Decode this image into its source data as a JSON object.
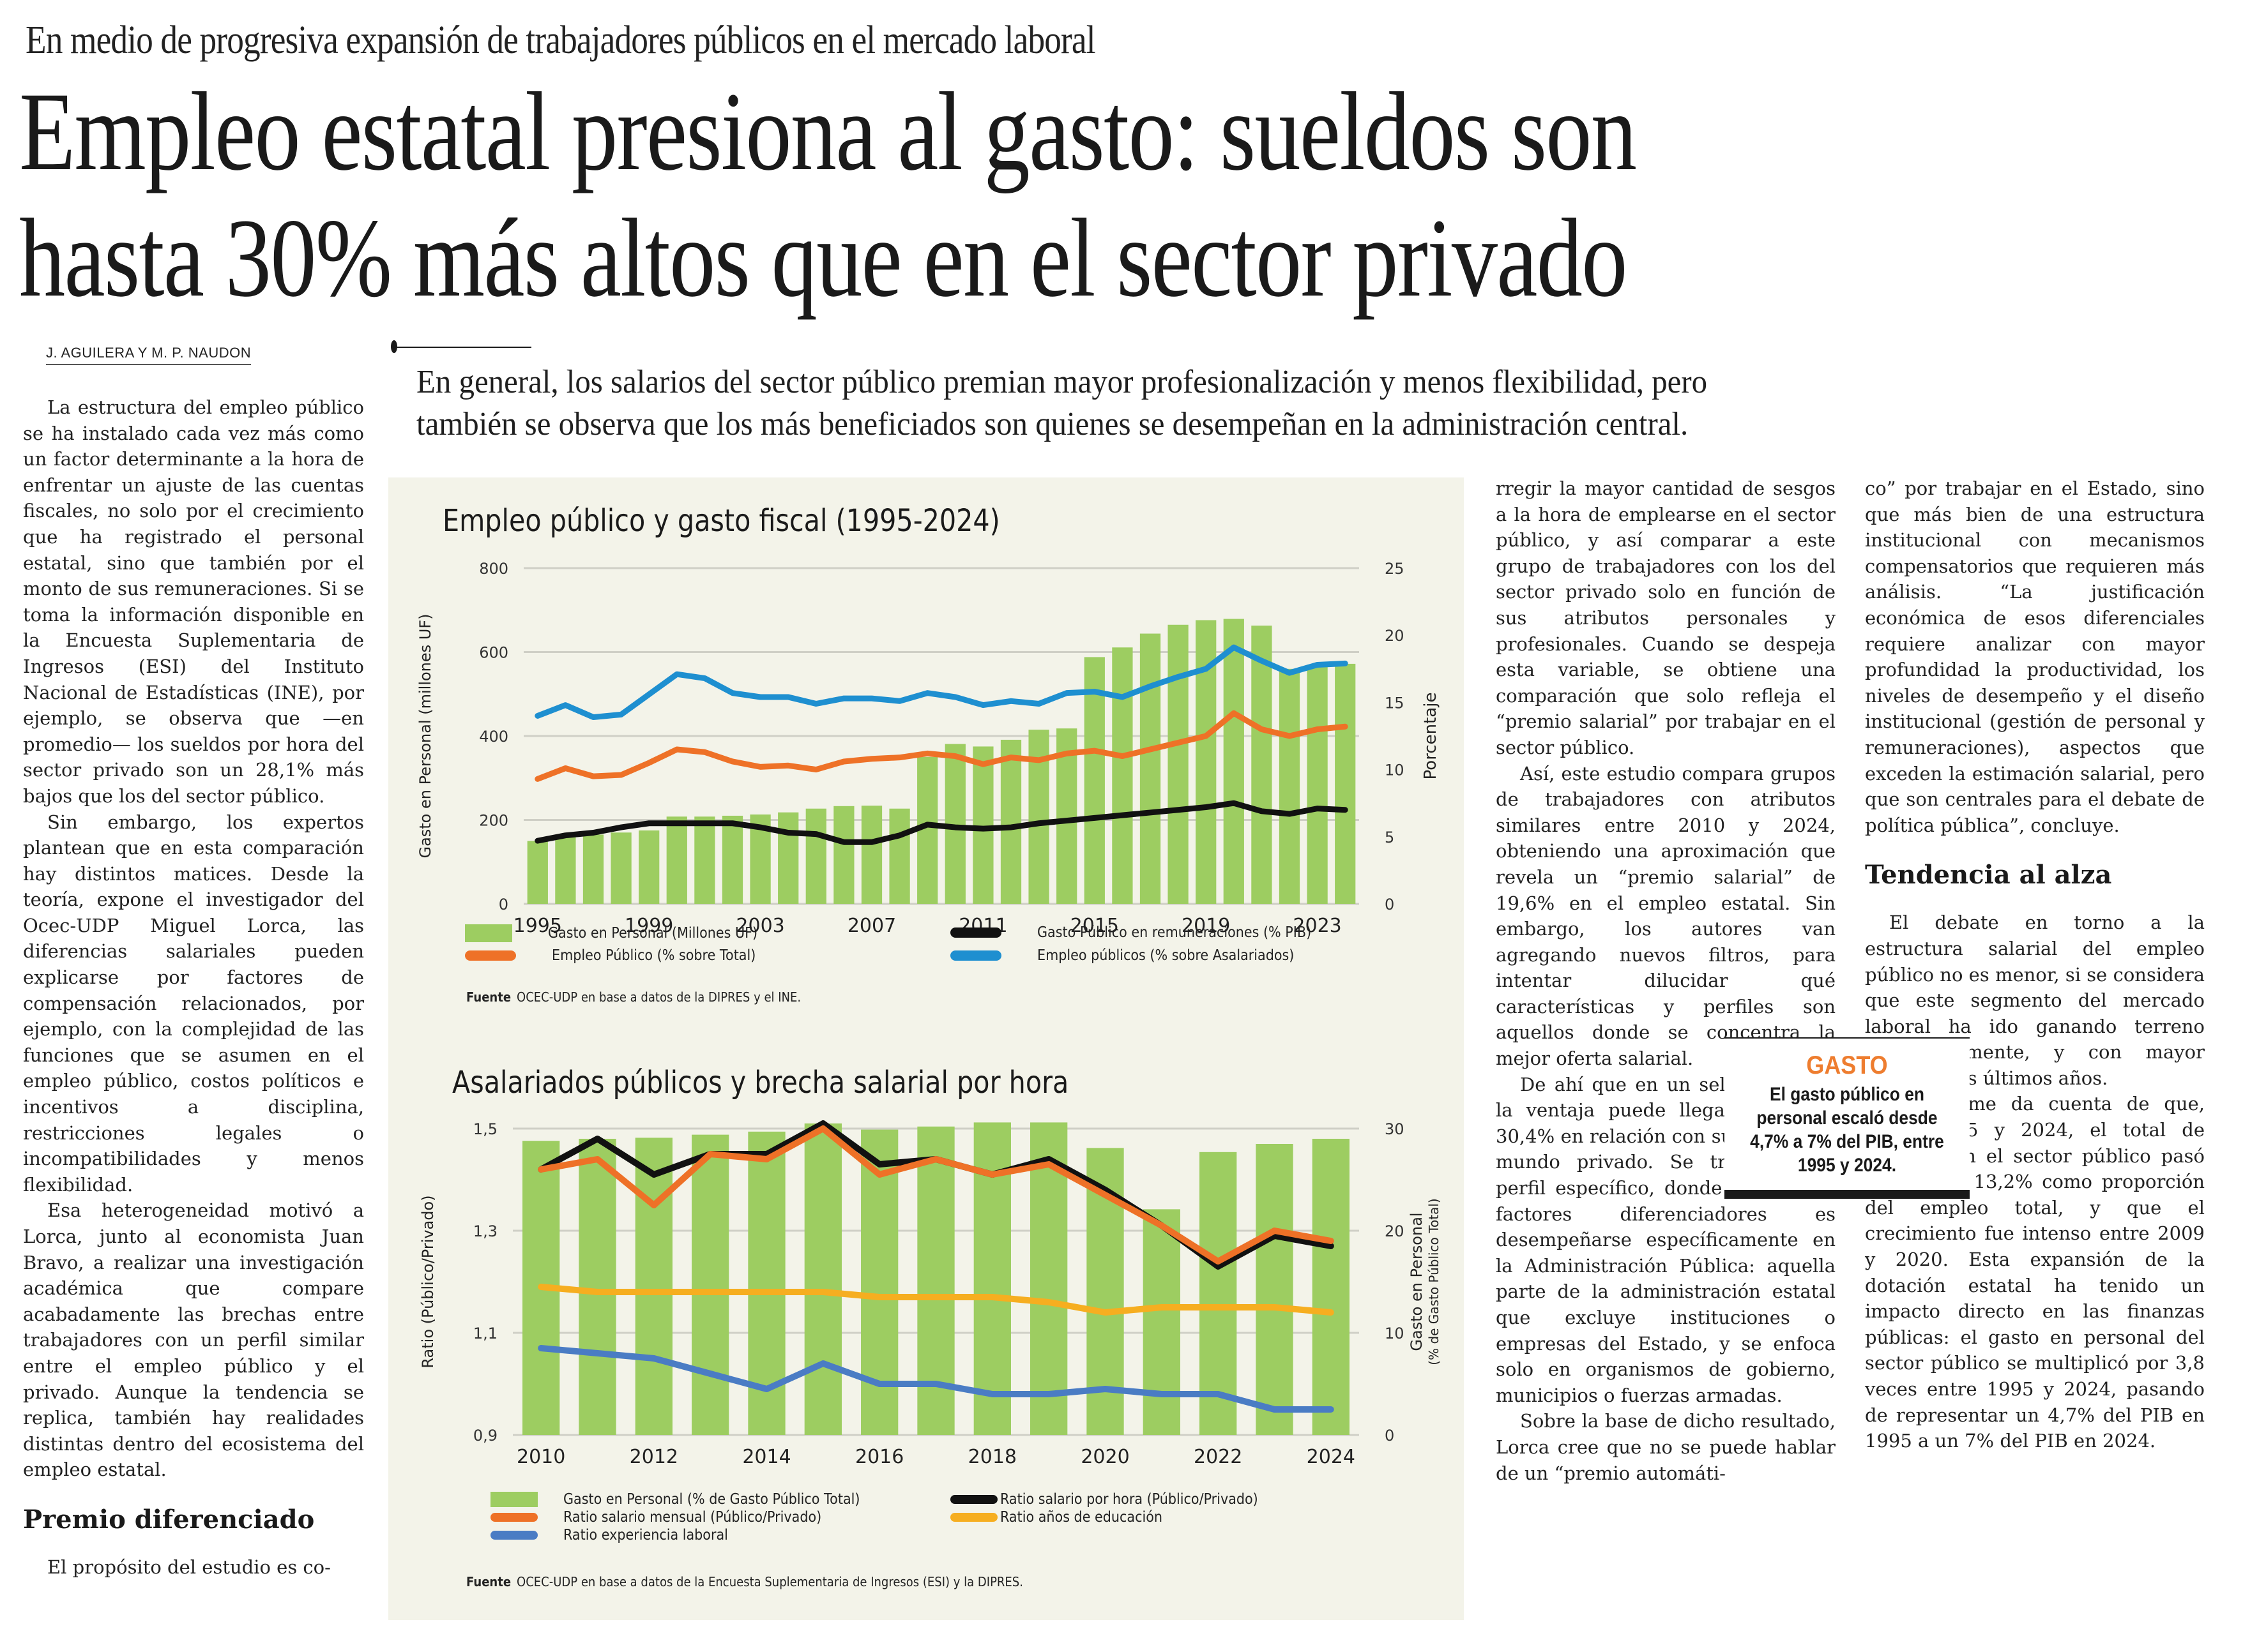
{
  "article": {
    "kicker": "En medio de progresiva expansión de trabajadores públicos en el mercado laboral",
    "headline_line1": "Empleo estatal presiona al gasto: sueldos son",
    "headline_line2": "hasta 30% más altos que en el sector privado",
    "byline": "J. AGUILERA Y M. P. NAUDON",
    "deck_line1": "En general, los salarios del sector público premian mayor profesionalización y menos flexibilidad, pero",
    "deck_line2": "también se observa que los más beneficiados son quienes se desempeñan en la administración central.",
    "col1": {
      "p1": "La estructura del empleo público se ha instalado cada vez más como un factor determinante a la hora de enfrentar un ajuste de las cuentas fiscales, no solo por el crecimiento que ha registrado el personal estatal, sino que también por el monto de sus remuneraciones. Si se toma la información disponible en la Encuesta Suplementaria de Ingresos (ESI) del Instituto Nacional de Estadísticas (INE), por ejemplo, se observa que —en promedio— los sueldos por hora del sector privado son un 28,1% más bajos que los del sector público.",
      "p2": "Sin embargo, los expertos plantean que en esta comparación hay distintos matices. Desde la teoría, expone el investigador del Ocec-UDP Miguel Lorca, las diferencias salariales pueden explicarse por factores de compensación relacionados, por ejemplo, con la complejidad de las funciones que se asumen en el empleo público, costos políticos e incentivos a disciplina, restricciones legales o incompatibilidades y menos flexibilidad.",
      "p3": "Esa heterogeneidad motivó a Lorca, junto al economista Juan Bravo, a realizar una investigación académica que compare acabadamente las brechas entre trabajadores con un perfil similar entre el empleo público y el privado. Aunque la tendencia se replica, también hay realidades distintas dentro del ecosistema del empleo estatal.",
      "subhead": "Premio diferenciado",
      "p4": "El propósito del estudio es co-"
    },
    "col3": {
      "p1": "rregir la mayor cantidad de sesgos a la hora de emplearse en el sector público, y así comparar a este grupo de trabajadores con los del sector privado solo en función de sus atributos personales y profesionales. Cuando se despeja esta variable, se obtiene una comparación que solo refleja el “premio salarial” por trabajar en el sector público.",
      "p2": "Así, este estudio compara grupos de trabajadores con atributos similares entre 2010 y 2024, obteniendo una aproximación que revela un “premio salarial” de 19,6% en el empleo estatal. Sin embargo, los autores van agregando nuevos filtros, para intentar dilucidar qué características y perfiles son aquellos donde se concentra la mejor oferta salarial.",
      "p3": "De ahí que en un selecto grupo, la ventaja puede llegar hasta un 30,4% en relación con sus pares del mundo privado. Se trata de un perfil específico, donde uno de los factores diferenciadores es desempeñarse específicamente en la Administración Pública: aquella parte de la administración estatal que excluye instituciones o empresas del Estado, y se enfoca solo en organismos de gobierno, municipios o fuerzas armadas.",
      "p4": "Sobre la base de dicho resultado, Lorca cree que no se puede hablar de un “premio automáti-"
    },
    "col4": {
      "p1": "co” por trabajar en el Estado, sino que más bien de una estructura institucional con mecanismos compensatorios que requieren más análisis. “La justificación económica de esos diferenciales requiere analizar con mayor profundidad la productividad, los niveles de desempeño y el diseño institucional (gestión de personal y remuneraciones), aspectos que exceden la estimación salarial, pero que son centrales para el debate de política pública”, concluye.",
      "subhead": "Tendencia al alza",
      "p2": "El debate en torno a la estructura salarial del empleo público no es menor, si se considera que este segmento del mercado laboral ha ido ganando terreno progresivamente, y con mayor ritmo en los últimos años.",
      "p3": "El informe da cuenta de que, entre 1995 y 2024, el total de empleos en el sector público pasó de 9,3% a 13,2% como proporción del empleo total, y que el crecimiento fue intenso entre 2009 y 2020. Esta expansión de la dotación estatal ha tenido un impacto directo en las finanzas públicas: el gasto en personal del sector público se multiplicó por 3,8 veces entre 1995 y 2024, pasando de representar un 4,7% del PIB en 1995 a un 7% del PIB en 2024."
    },
    "pullquote": {
      "tag": "GASTO",
      "text": "El gasto público en personal escaló desde 4,7% a 7% del PIB, entre 1995 y 2024."
    }
  },
  "colors": {
    "bar_green": "#9dcd61",
    "orange": "#ee7127",
    "blue": "#1e8fd0",
    "black": "#111111",
    "yellow": "#f6ae20",
    "steel_blue": "#4a7cc4",
    "accent_orange": "#ee7d2f",
    "graphic_bg": "#f3f3e9"
  },
  "chart_data": [
    {
      "type": "bar+line",
      "title": "Empleo público y gasto fiscal (1995-2024)",
      "ylabel": "Gasto en Personal (millones UF)",
      "y2label": "Porcentaje",
      "ylim": [
        0,
        800
      ],
      "y2lim": [
        0,
        25
      ],
      "yticks": [
        "0",
        "200",
        "400",
        "600",
        "800"
      ],
      "y2ticks": [
        "0",
        "5",
        "10",
        "15",
        "20",
        "25"
      ],
      "xtick_labels": [
        "1995",
        "1999",
        "2003",
        "2007",
        "2011",
        "2015",
        "2019",
        "2023"
      ],
      "grid": true,
      "x": [
        1995,
        1996,
        1997,
        1998,
        1999,
        2000,
        2001,
        2002,
        2003,
        2004,
        2005,
        2006,
        2007,
        2008,
        2009,
        2010,
        2011,
        2012,
        2013,
        2014,
        2015,
        2016,
        2017,
        2018,
        2019,
        2020,
        2021,
        2022,
        2023,
        2024
      ],
      "bars": {
        "name": "Gasto en Personal (Millones UF)",
        "axis": "left",
        "values": [
          150,
          160,
          165,
          170,
          175,
          208,
          208,
          210,
          213,
          218,
          227,
          233,
          234,
          227,
          350,
          381,
          375,
          391,
          415,
          418,
          588,
          611,
          644,
          665,
          676,
          679,
          663,
          560,
          570,
          572
        ]
      },
      "series": [
        {
          "name": "Gasto Público en remuneraciones (% PIB)",
          "axis": "right",
          "color": "#111111",
          "values": [
            4.7,
            5.1,
            5.3,
            5.7,
            6.0,
            6.0,
            6.0,
            6.0,
            5.7,
            5.3,
            5.2,
            4.6,
            4.6,
            5.1,
            5.9,
            5.7,
            5.6,
            5.7,
            6.0,
            6.2,
            6.4,
            6.6,
            6.8,
            7.0,
            7.2,
            7.5,
            6.9,
            6.7,
            7.1,
            7.0
          ]
        },
        {
          "name": "Empleo Público (% sobre Total)",
          "axis": "right",
          "color": "#ee7127",
          "values": [
            9.3,
            10.1,
            9.5,
            9.6,
            10.5,
            11.5,
            11.3,
            10.6,
            10.2,
            10.3,
            10.0,
            10.6,
            10.8,
            10.9,
            11.2,
            11.0,
            10.4,
            10.9,
            10.7,
            11.2,
            11.4,
            11.0,
            11.5,
            12.0,
            12.5,
            14.2,
            13.0,
            12.5,
            13.0,
            13.2
          ]
        },
        {
          "name": "Empleo públicos (% sobre Asalariados)",
          "axis": "right",
          "color": "#1e8fd0",
          "values": [
            14.0,
            14.8,
            13.9,
            14.1,
            15.6,
            17.1,
            16.8,
            15.7,
            15.4,
            15.4,
            14.9,
            15.3,
            15.3,
            15.1,
            15.7,
            15.4,
            14.8,
            15.1,
            14.9,
            15.7,
            15.8,
            15.4,
            16.2,
            16.9,
            17.5,
            19.1,
            18.1,
            17.2,
            17.8,
            17.9
          ]
        }
      ],
      "legend": [
        "Gasto en Personal (Millones UF)",
        "Gasto Público en remuneraciones (% PIB)",
        "Empleo Público (% sobre Total)",
        "Empleo públicos (% sobre Asalariados)"
      ],
      "source_label": "Fuente",
      "source": "OCEC-UDP en base a datos de la DIPRES y el INE."
    },
    {
      "type": "bar+line",
      "title": "Asalariados públicos y brecha salarial por hora",
      "ylabel": "Ratio (Público/Privado)",
      "y2label_line1": "Gasto en Personal",
      "y2label_line2": "(% de Gasto Público Total)",
      "ylim": [
        0.9,
        1.5
      ],
      "y2lim": [
        0,
        30
      ],
      "yticks": [
        "0,9",
        "1,1",
        "1,3",
        "1,5"
      ],
      "y2ticks": [
        "0",
        "10",
        "20",
        "30"
      ],
      "xtick_labels": [
        "2010",
        "2012",
        "2014",
        "2016",
        "2018",
        "2020",
        "2022",
        "2024"
      ],
      "grid": true,
      "x": [
        2010,
        2011,
        2012,
        2013,
        2014,
        2015,
        2016,
        2017,
        2018,
        2019,
        2020,
        2021,
        2022,
        2023,
        2024
      ],
      "bars": {
        "name": "Gasto en Personal (% de Gasto Público Total)",
        "axis": "right",
        "values": [
          28.8,
          29.0,
          29.1,
          29.4,
          29.7,
          30.5,
          29.9,
          30.2,
          30.6,
          30.6,
          28.1,
          22.1,
          27.7,
          28.5,
          29.0
        ]
      },
      "series": [
        {
          "name": "Ratio salario por hora (Público/Privado)",
          "axis": "left",
          "color": "#111111",
          "values": [
            1.42,
            1.48,
            1.41,
            1.45,
            1.45,
            1.51,
            1.43,
            1.44,
            1.41,
            1.44,
            1.38,
            1.31,
            1.23,
            1.29,
            1.27
          ]
        },
        {
          "name": "Ratio salario mensual (Público/Privado)",
          "axis": "left",
          "color": "#ee7127",
          "values": [
            1.42,
            1.44,
            1.35,
            1.45,
            1.44,
            1.5,
            1.41,
            1.44,
            1.41,
            1.43,
            1.37,
            1.31,
            1.24,
            1.3,
            1.28
          ]
        },
        {
          "name": "Ratio años de educación",
          "axis": "left",
          "color": "#f6ae20",
          "values": [
            1.19,
            1.18,
            1.18,
            1.18,
            1.18,
            1.18,
            1.17,
            1.17,
            1.17,
            1.16,
            1.14,
            1.15,
            1.15,
            1.15,
            1.14
          ]
        },
        {
          "name": "Ratio experiencia laboral",
          "axis": "left",
          "color": "#4a7cc4",
          "values": [
            1.07,
            1.06,
            1.05,
            1.02,
            0.99,
            1.04,
            1.0,
            1.0,
            0.98,
            0.98,
            0.99,
            0.98,
            0.98,
            0.95,
            0.95
          ]
        }
      ],
      "legend": [
        "Gasto en Personal (% de Gasto Público Total)",
        "Ratio salario por hora (Público/Privado)",
        "Ratio salario mensual (Público/Privado)",
        "Ratio años de educación",
        "Ratio experiencia laboral"
      ],
      "source_label": "Fuente",
      "source": "OCEC-UDP en base a datos de la Encuesta Suplementaria de Ingresos (ESI) y la DIPRES."
    }
  ]
}
